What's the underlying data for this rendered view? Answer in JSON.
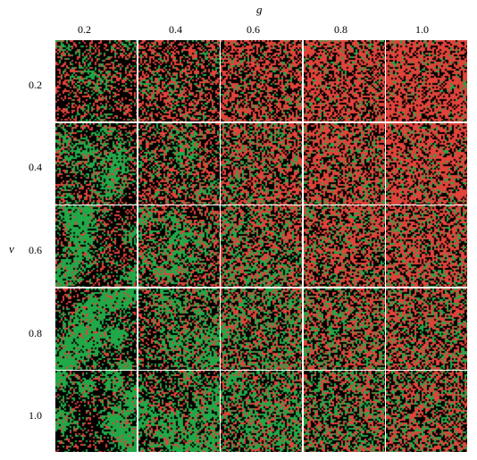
{
  "figure": {
    "x_axis_title": "g",
    "y_axis_title": "v",
    "g_values": [
      "0.2",
      "0.4",
      "0.6",
      "0.8",
      "1.0"
    ],
    "v_values": [
      "0.2",
      "0.4",
      "0.6",
      "0.8",
      "1.0"
    ]
  },
  "colors": {
    "background": "#000000",
    "red_species": "#e0433a",
    "green_species": "#21a848",
    "separator": "#ffffff"
  }
}
